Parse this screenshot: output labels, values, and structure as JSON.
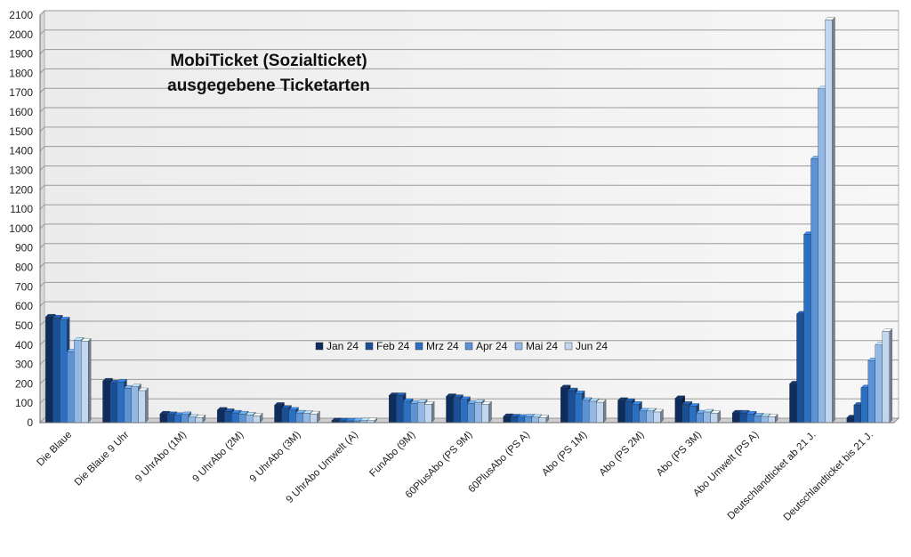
{
  "chart_data": {
    "type": "bar",
    "title_lines": [
      "MobiTicket (Sozialticket)",
      "ausgegebene Ticketarten"
    ],
    "xlabel": "",
    "ylabel": "",
    "ylim": [
      0,
      2100
    ],
    "yticks": [
      0,
      100,
      200,
      300,
      400,
      500,
      600,
      700,
      800,
      900,
      1000,
      1100,
      1200,
      1300,
      1400,
      1500,
      1600,
      1700,
      1800,
      1900,
      2000,
      2100
    ],
    "grid": true,
    "legend_position": "center",
    "categories": [
      "Die Blaue",
      "Die Blaue 9 Uhr",
      "9 UhrAbo (1M)",
      "9 UhrAbo (2M)",
      "9 UhrAbo (3M)",
      "9 UhrAbo Umwelt (A)",
      "FunAbo (9M)",
      "60PlusAbo (PS 9M)",
      "60PlusAbo (PS A)",
      "Abo (PS 1M)",
      "Abo (PS 2M)",
      "Abo (PS 3M)",
      "Abo Umwelt (PS A)",
      "Deutschlandticket ab 21 J.",
      "Deutschlandticket bis 21 J."
    ],
    "series": [
      {
        "name": "Jan 24",
        "color": "#0e2d5c",
        "values": [
          545,
          215,
          45,
          65,
          90,
          10,
          140,
          135,
          32,
          180,
          115,
          125,
          50,
          200,
          25
        ]
      },
      {
        "name": "Feb 24",
        "color": "#1a4f96",
        "values": [
          540,
          205,
          42,
          58,
          75,
          9,
          140,
          130,
          30,
          165,
          110,
          95,
          50,
          560,
          90
        ]
      },
      {
        "name": "Mrz 24",
        "color": "#2a6fc2",
        "values": [
          530,
          210,
          38,
          50,
          65,
          9,
          110,
          120,
          28,
          150,
          95,
          85,
          45,
          970,
          180
        ]
      },
      {
        "name": "Apr 24",
        "color": "#5b93d6",
        "values": [
          365,
          178,
          42,
          45,
          50,
          9,
          100,
          100,
          30,
          115,
          60,
          50,
          35,
          1360,
          320
        ]
      },
      {
        "name": "Mai 24",
        "color": "#93b8e6",
        "values": [
          425,
          185,
          28,
          40,
          48,
          10,
          105,
          105,
          28,
          110,
          60,
          55,
          32,
          1720,
          400
        ]
      },
      {
        "name": "Jun 24",
        "color": "#c2d6f0",
        "values": [
          420,
          165,
          26,
          35,
          45,
          10,
          95,
          95,
          25,
          105,
          55,
          48,
          30,
          2075,
          470
        ]
      }
    ]
  }
}
